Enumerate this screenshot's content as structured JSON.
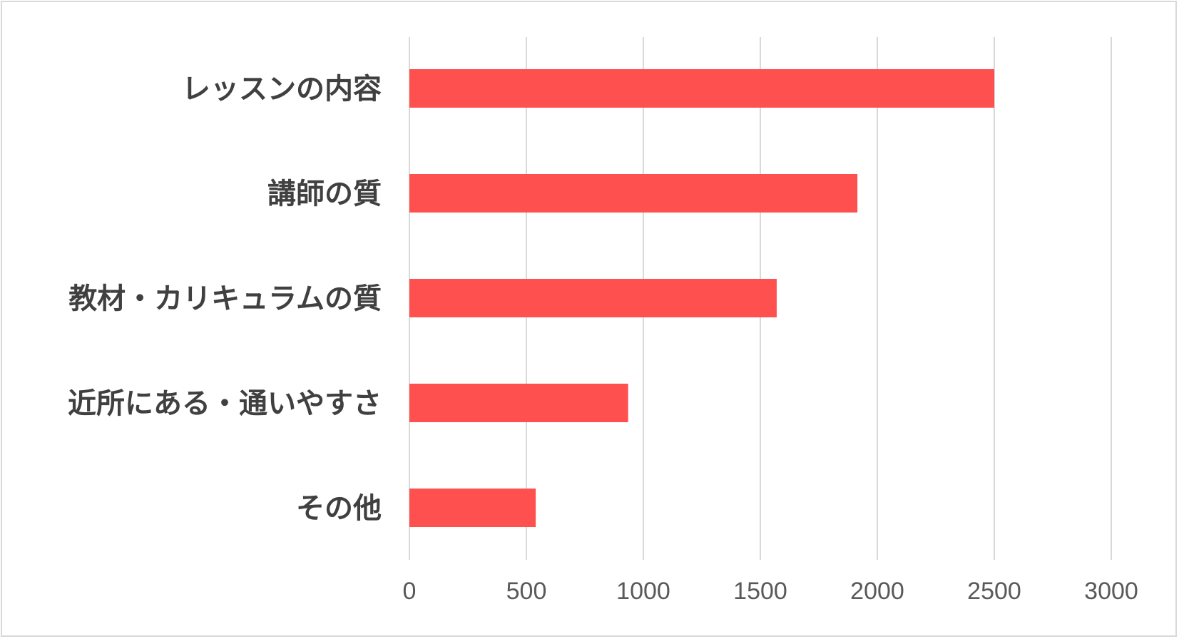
{
  "chart_data": {
    "type": "bar",
    "orientation": "horizontal",
    "categories": [
      "レッスンの内容",
      "講師の質",
      "教材・カリキュラムの質",
      "近所にある・通いやすさ",
      "その他"
    ],
    "values": [
      2500,
      1915,
      1570,
      935,
      540
    ],
    "xlim": [
      0,
      3000
    ],
    "xticks": [
      0,
      500,
      1000,
      1500,
      2000,
      2500,
      3000
    ],
    "xtick_labels": [
      "0",
      "500",
      "1000",
      "1500",
      "2000",
      "2500",
      "3000"
    ],
    "grid": "vertical",
    "legend": "none",
    "bar_color": "#ff5050",
    "grid_color": "#d9d9d9"
  }
}
